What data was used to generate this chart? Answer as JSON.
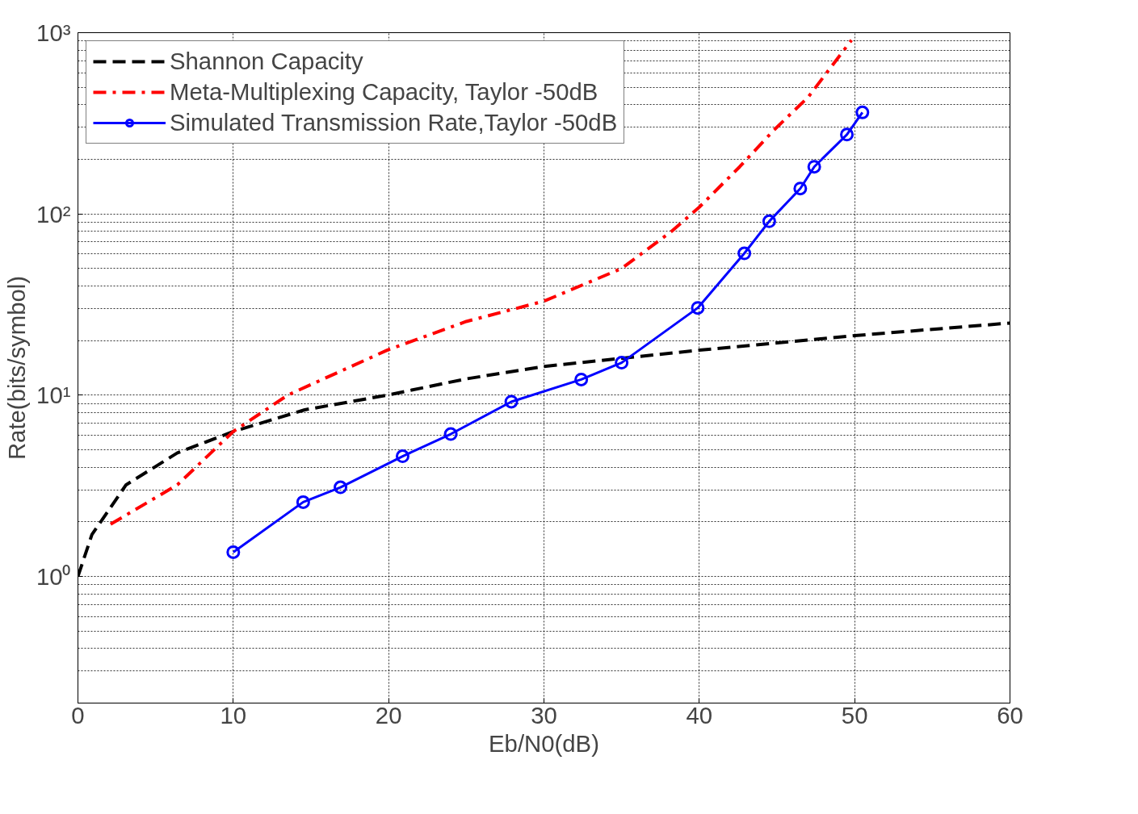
{
  "chart_data": {
    "type": "line",
    "xlabel": "Eb/N0(dB)",
    "ylabel": "Rate(bits/symbol)",
    "log": "y",
    "grid": true,
    "legend": "top left",
    "xlim": [
      0,
      60
    ],
    "xticks": [
      0,
      10,
      20,
      30,
      40,
      50,
      60
    ],
    "ylim": [
      0.2,
      1000
    ],
    "yticks": [
      {
        "value": 1,
        "label": "10⁰"
      },
      {
        "value": 10,
        "label": "10¹"
      },
      {
        "value": 100,
        "label": "10²"
      },
      {
        "value": 1000,
        "label": "10³"
      }
    ],
    "series": [
      {
        "name": "Shannon Capacity",
        "color": "#000000",
        "line_style": "dashed",
        "marker": "none",
        "x": [
          0,
          0.9,
          3.1,
          6.4,
          10,
          14.6,
          19.9,
          25,
          30,
          40,
          50,
          60
        ],
        "values": [
          1,
          1.7,
          3.2,
          4.8,
          6.3,
          8.3,
          10,
          12.3,
          14.4,
          17.7,
          21.3,
          25
        ]
      },
      {
        "name": "Meta-Multiplexing Capacity, Taylor -50dB",
        "color": "#ff0000",
        "line_style": "dashdot",
        "marker": "none",
        "x": [
          2.1,
          6.4,
          10,
          13.5,
          19.9,
          25,
          30,
          35,
          38.2,
          40,
          42.6,
          44.8,
          47,
          49.8
        ],
        "values": [
          1.94,
          3.2,
          6.3,
          10,
          17.7,
          25.5,
          33,
          50,
          80,
          109,
          182,
          290,
          440,
          910
        ]
      },
      {
        "name": "Simulated Transmission Rate,Taylor -50dB",
        "color": "#0000ff",
        "line_style": "solid",
        "marker": "circle",
        "x": [
          10,
          14.5,
          16.9,
          20.9,
          24.0,
          27.9,
          32.4,
          35.0,
          39.9,
          42.9,
          44.5,
          46.5,
          47.4,
          49.5,
          50.5
        ],
        "values": [
          1.36,
          2.57,
          3.1,
          4.6,
          6.1,
          9.2,
          12.2,
          15.1,
          30.3,
          60.6,
          91,
          138,
          182,
          274,
          363
        ]
      }
    ]
  }
}
